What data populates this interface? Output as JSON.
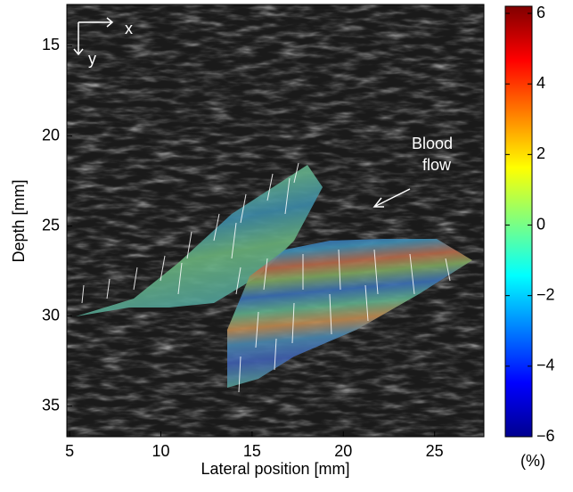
{
  "chart_data": {
    "type": "image",
    "xlabel": "Lateral position [mm]",
    "ylabel": "Depth [mm]",
    "xlim": [
      4.85,
      27.7
    ],
    "ylim": [
      12.7,
      36.7
    ],
    "y_inverted": true,
    "xticks": [
      5,
      10,
      15,
      20,
      25
    ],
    "yticks": [
      15,
      20,
      25,
      30,
      35
    ],
    "colorbar": {
      "lim": [
        -6,
        6
      ],
      "label": "(%)",
      "ticks": [
        {
          "value": -6,
          "label": "−6"
        },
        {
          "value": -4,
          "label": "−4"
        },
        {
          "value": -2,
          "label": "−2"
        },
        0,
        2,
        4,
        6
      ]
    },
    "annotations": {
      "axis_x": "x",
      "axis_y": "y",
      "flow": [
        "Blood",
        "flow"
      ]
    }
  }
}
